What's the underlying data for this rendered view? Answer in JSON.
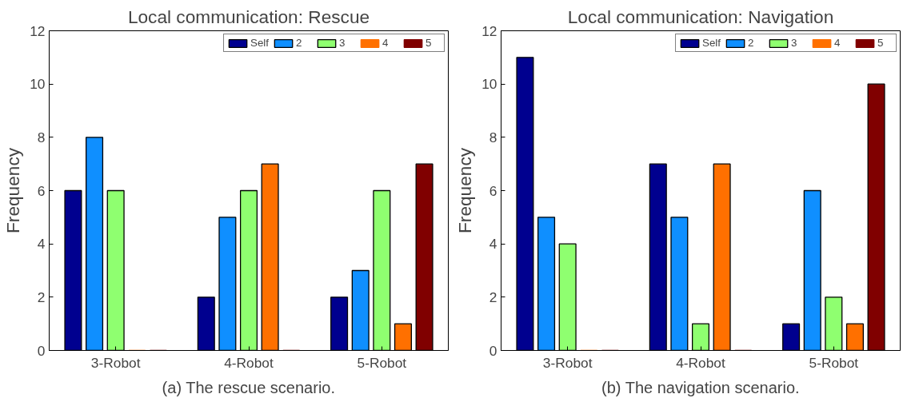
{
  "chart_data": [
    {
      "type": "bar",
      "title": "Local communication: Rescue",
      "ylabel": "Frequency",
      "categories": [
        "3-Robot",
        "4-Robot",
        "5-Robot"
      ],
      "ylim": [
        0,
        12
      ],
      "yticks": [
        0,
        2,
        4,
        6,
        8,
        10,
        12
      ],
      "grid": false,
      "legend": "top right",
      "annotations": [
        "(a) The rescue scenario."
      ],
      "series": [
        {
          "name": "Self",
          "color": "#00008f",
          "values": [
            6,
            2,
            2
          ]
        },
        {
          "name": "2",
          "color": "#0f8fff",
          "values": [
            8,
            5,
            3
          ]
        },
        {
          "name": "3",
          "color": "#8fff70",
          "values": [
            6,
            6,
            6
          ]
        },
        {
          "name": "4",
          "color": "#ff7000",
          "values": [
            0,
            7,
            1
          ]
        },
        {
          "name": "5",
          "color": "#800000",
          "values": [
            0,
            0,
            7
          ]
        }
      ]
    },
    {
      "type": "bar",
      "title": "Local communication: Navigation",
      "ylabel": "Frequency",
      "categories": [
        "3-Robot",
        "4-Robot",
        "5-Robot"
      ],
      "ylim": [
        0,
        12
      ],
      "yticks": [
        0,
        2,
        4,
        6,
        8,
        10,
        12
      ],
      "grid": false,
      "legend": "top right",
      "annotations": [
        "(b) The navigation scenario."
      ],
      "series": [
        {
          "name": "Self",
          "color": "#00008f",
          "values": [
            11,
            7,
            1
          ]
        },
        {
          "name": "2",
          "color": "#0f8fff",
          "values": [
            5,
            5,
            6
          ]
        },
        {
          "name": "3",
          "color": "#8fff70",
          "values": [
            4,
            1,
            2
          ]
        },
        {
          "name": "4",
          "color": "#ff7000",
          "values": [
            0,
            7,
            1
          ]
        },
        {
          "name": "5",
          "color": "#800000",
          "values": [
            0,
            0,
            10
          ]
        }
      ]
    }
  ]
}
